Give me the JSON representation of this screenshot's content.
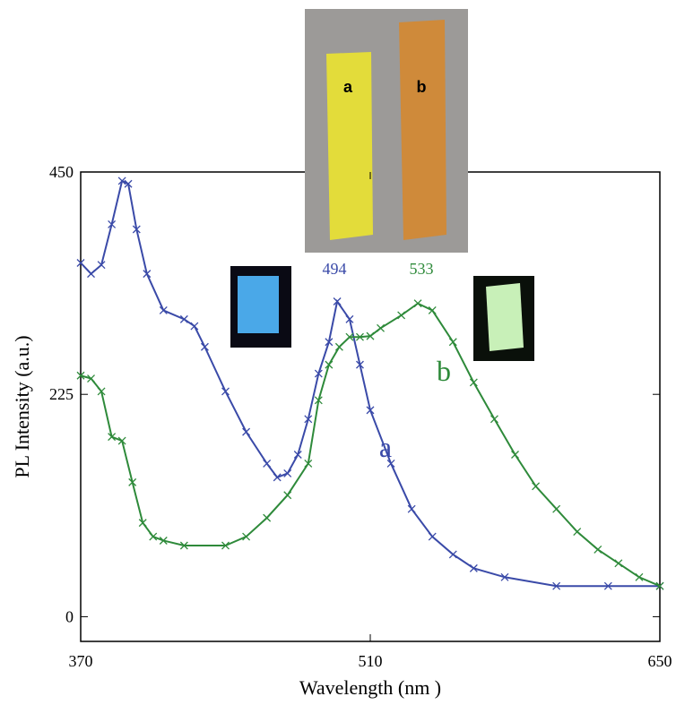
{
  "chart_data": {
    "type": "line",
    "x_label": "Wavelength   (nm )",
    "y_label": "PL Intensity   (a.u.)",
    "xlim": [
      370,
      650
    ],
    "xticks": [
      370,
      510,
      650
    ],
    "ylim": [
      -25,
      450
    ],
    "yticks": [
      0,
      225,
      450
    ],
    "annotations": {
      "peak_a": "494",
      "peak_b": "533",
      "curve_a": "a",
      "curve_b": "b",
      "photo_a": "a",
      "photo_b": "b"
    },
    "series": [
      {
        "name": "a",
        "color": "#3a4aa8",
        "x": [
          370,
          375,
          380,
          385,
          390,
          393,
          397,
          402,
          410,
          420,
          425,
          430,
          440,
          450,
          460,
          465,
          470,
          475,
          480,
          485,
          490,
          494,
          500,
          505,
          510,
          520,
          530,
          540,
          550,
          560,
          575,
          600,
          625,
          650
        ],
        "values": [
          358,
          347,
          356,
          397,
          441,
          438,
          392,
          347,
          310,
          301,
          294,
          273,
          228,
          187,
          155,
          141,
          145,
          164,
          200,
          246,
          278,
          319,
          301,
          255,
          209,
          155,
          109,
          81,
          63,
          49,
          40,
          31,
          31,
          31
        ]
      },
      {
        "name": "b",
        "color": "#2e8a3a",
        "x": [
          370,
          375,
          380,
          385,
          390,
          395,
          400,
          405,
          410,
          420,
          440,
          450,
          460,
          470,
          480,
          485,
          490,
          495,
          500,
          505,
          510,
          515,
          525,
          533,
          540,
          550,
          560,
          570,
          580,
          590,
          600,
          610,
          620,
          630,
          640,
          650
        ],
        "values": [
          244,
          241,
          228,
          182,
          178,
          136,
          95,
          81,
          77,
          72,
          72,
          81,
          100,
          123,
          155,
          219,
          255,
          273,
          283,
          283,
          284,
          292,
          305,
          317,
          310,
          278,
          237,
          200,
          164,
          132,
          109,
          86,
          68,
          54,
          40,
          31
        ]
      }
    ]
  }
}
